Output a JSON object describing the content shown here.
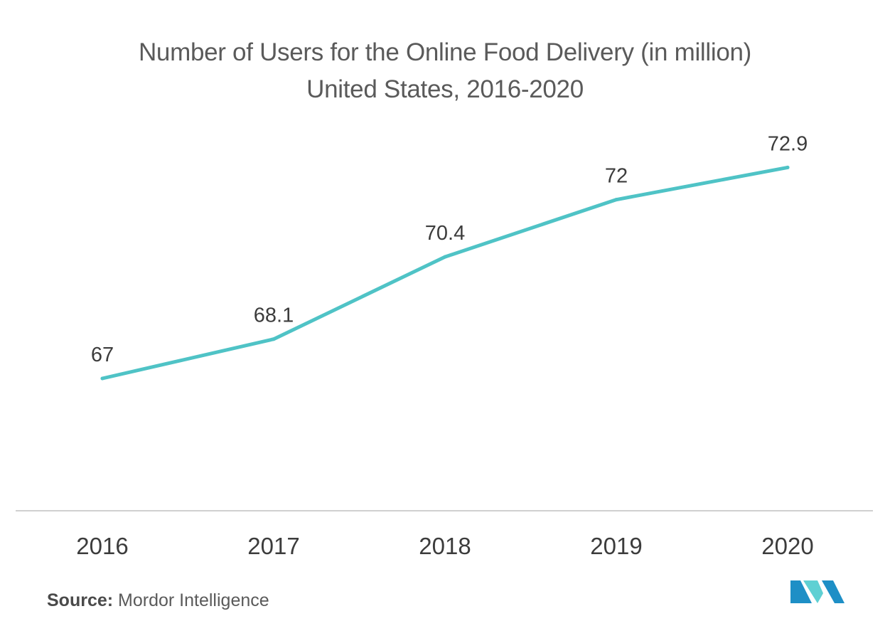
{
  "chart_data": {
    "type": "line",
    "title_line1": "Number of Users for the Online Food Delivery (in million)",
    "title_line2": "United States, 2016-2020",
    "categories": [
      "2016",
      "2017",
      "2018",
      "2019",
      "2020"
    ],
    "series": [
      {
        "values": [
          67,
          68.1,
          70.4,
          72,
          72.9
        ],
        "labels": [
          "67",
          "68.1",
          "70.4",
          "72",
          "72.9"
        ],
        "color": "#4fc3c6"
      }
    ],
    "ylim": [
      63.3,
      74.4
    ],
    "grid": false,
    "legend": "none"
  },
  "source": {
    "key": "Source:",
    "value": "Mordor Intelligence"
  },
  "logo": {
    "icon": "mordor-intelligence-logo-icon",
    "color_dark": "#1e8fc6",
    "color_light": "#5fd0d3"
  }
}
